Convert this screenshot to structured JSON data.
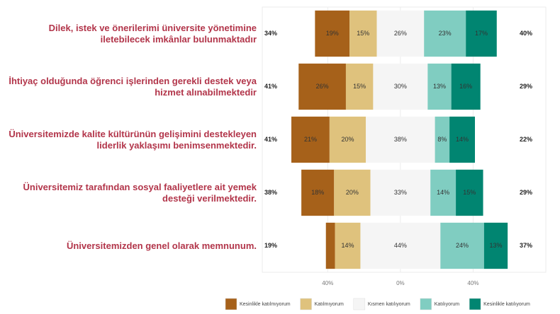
{
  "chart_data": {
    "type": "diverging_bar",
    "categories": [
      "Dilek, istek ve önerilerimi üniversite yönetimine iletebilecek imkânlar bulunmaktadır",
      "İhtiyaç olduğunda öğrenci işlerinden gerekli destek veya hizmet alınabilmektedir",
      "Üniversitemizde kalite kültürünün gelişimini destekleyen liderlik yaklaşımı benimsenmektedir.",
      "Üniversitemiz tarafından sosyal faaliyetlere ait yemek desteği verilmektedir.",
      "Üniversitemizden genel olarak memnunum."
    ],
    "left_labels": [
      "34%",
      "41%",
      "41%",
      "38%",
      "19%"
    ],
    "right_labels": [
      "40%",
      "29%",
      "22%",
      "29%",
      "37%"
    ],
    "series": [
      {
        "name": "Kesinlikle katılmıyorum",
        "color": "#a6611a",
        "values": [
          19,
          26,
          21,
          18,
          5
        ],
        "value_labels": [
          "19%",
          "26%",
          "21%",
          "18%",
          null
        ]
      },
      {
        "name": "Katılmıyorum",
        "color": "#dfc27d",
        "values": [
          15,
          15,
          20,
          20,
          14
        ],
        "value_labels": [
          "15%",
          "15%",
          "20%",
          "20%",
          "14%"
        ]
      },
      {
        "name": "Kısmen katılıyorum",
        "color": "#f5f5f5",
        "values": [
          26,
          30,
          38,
          33,
          44
        ],
        "value_labels": [
          "26%",
          "30%",
          "38%",
          "33%",
          "44%"
        ]
      },
      {
        "name": "Katılıyorum",
        "color": "#80cdc1",
        "values": [
          23,
          13,
          8,
          14,
          24
        ],
        "value_labels": [
          "23%",
          "13%",
          "8%",
          "14%",
          "24%"
        ]
      },
      {
        "name": "Kesinlikle katılıyorum",
        "color": "#018571",
        "values": [
          17,
          16,
          14,
          15,
          13
        ],
        "value_labels": [
          "17%",
          "16%",
          "14%",
          "15%",
          "13%"
        ]
      }
    ],
    "xlim": [
      -76,
      80
    ],
    "xticks": [
      {
        "value": -40,
        "label": "40%"
      },
      {
        "value": 0,
        "label": "0%"
      },
      {
        "value": 40,
        "label": "40%"
      }
    ],
    "grid": true
  }
}
